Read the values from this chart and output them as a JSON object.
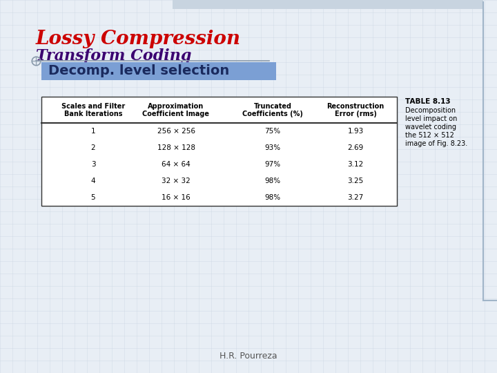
{
  "title1": "Lossy Compression",
  "title2": "Transform Coding",
  "subtitle": "Decomp. level selection",
  "subtitle_bg": "#7B9FD4",
  "table_title": "TABLE 8.13",
  "table_caption": [
    "Decomposition",
    "level impact on",
    "wavelet coding",
    "the 512 × 512",
    "image of Fig. 8.23."
  ],
  "col_headers": [
    [
      "Scales and Filter",
      "Bank Iterations"
    ],
    [
      "Approximation",
      "Coefficient Image"
    ],
    [
      "Truncated",
      "Coefficients (%)"
    ],
    [
      "Reconstruction",
      "Error (rms)"
    ]
  ],
  "rows": [
    [
      "1",
      "256 × 256",
      "75%",
      "1.93"
    ],
    [
      "2",
      "128 × 128",
      "93%",
      "2.69"
    ],
    [
      "3",
      "64 × 64",
      "97%",
      "3.12"
    ],
    [
      "4",
      "32 × 32",
      "98%",
      "3.25"
    ],
    [
      "5",
      "16 × 16",
      "98%",
      "3.27"
    ]
  ],
  "footer": "H.R. Pourreza",
  "grid_color": "#C5D0DE",
  "page_bg": "#E8EEF5",
  "title1_color": "#CC0000",
  "title2_color": "#3B0070",
  "subtitle_text_color": "#1A2A5E",
  "deco_color": "#A0B4C8"
}
